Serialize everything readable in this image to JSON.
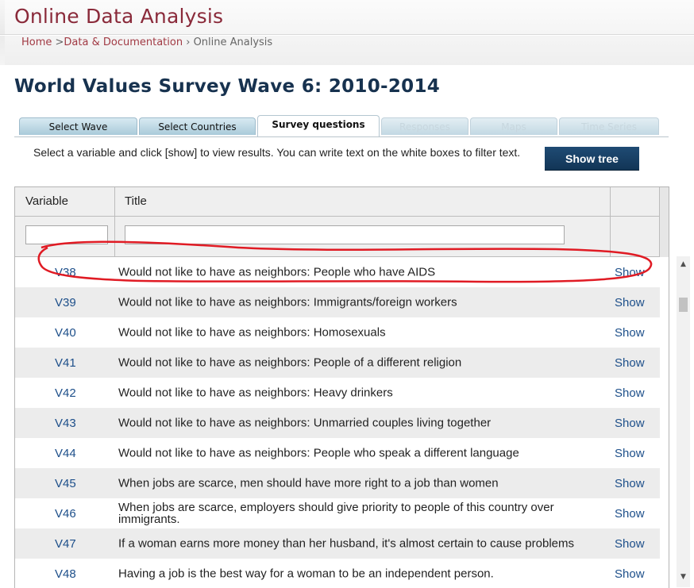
{
  "header": {
    "app_title": "Online Data Analysis",
    "breadcrumb": {
      "home": "Home",
      "sep1": " >",
      "data_docs": "Data & Documentation",
      "sep2": " › ",
      "current": "Online Analysis"
    }
  },
  "page_title": "World Values Survey Wave 6: 2010-2014",
  "tabs": [
    {
      "label": "Select Wave",
      "state": "normal"
    },
    {
      "label": "Select Countries",
      "state": "normal"
    },
    {
      "label": "Survey questions",
      "state": "active"
    },
    {
      "label": "Responses",
      "state": "disabled"
    },
    {
      "label": "Maps",
      "state": "disabled"
    },
    {
      "label": "Time Series",
      "state": "disabled"
    }
  ],
  "instructions": "Select a variable and click [show] to view results. You can write text on the white boxes to filter text.",
  "show_tree_label": "Show tree",
  "grid": {
    "columns": {
      "variable": "Variable",
      "title": "Title"
    },
    "filters": {
      "variable": "",
      "title": ""
    },
    "rows": [
      {
        "variable": "V38",
        "title": "Would not like to have as neighbors: People who have AIDS",
        "action": "Show"
      },
      {
        "variable": "V39",
        "title": "Would not like to have as neighbors: Immigrants/foreign workers",
        "action": "Show"
      },
      {
        "variable": "V40",
        "title": "Would not like to have as neighbors: Homosexuals",
        "action": "Show"
      },
      {
        "variable": "V41",
        "title": "Would not like to have as neighbors: People of a different religion",
        "action": "Show"
      },
      {
        "variable": "V42",
        "title": "Would not like to have as neighbors: Heavy drinkers",
        "action": "Show"
      },
      {
        "variable": "V43",
        "title": "Would not like to have as neighbors: Unmarried couples living together",
        "action": "Show"
      },
      {
        "variable": "V44",
        "title": "Would not like to have as neighbors: People who speak a different language",
        "action": "Show"
      },
      {
        "variable": "V45",
        "title": "When jobs are scarce, men should have more right to a job than women",
        "action": "Show"
      },
      {
        "variable": "V46",
        "title": "When jobs are scarce, employers should give priority to people of this country over immigrants.",
        "action": "Show"
      },
      {
        "variable": "V47",
        "title": "If a woman earns more money than her husband, it's almost certain to cause problems",
        "action": "Show"
      },
      {
        "variable": "V48",
        "title": "Having a job is the best way for a woman to be an independent person.",
        "action": "Show"
      }
    ]
  },
  "scrollbar": {
    "up_icon": "▲",
    "down_icon": "▼"
  },
  "colors": {
    "brand_title": "#8a2a3a",
    "link": "#1d4f8a",
    "button": "#1a4268",
    "annotation": "#e01b24"
  }
}
